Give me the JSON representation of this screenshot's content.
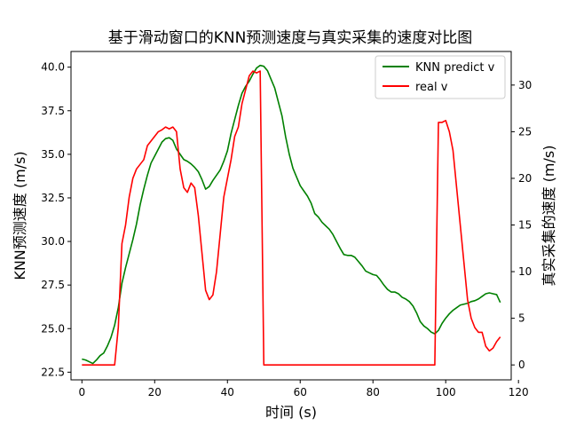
{
  "chart_data": {
    "type": "line",
    "title": "基于滑动窗口的KNN预测速度与真实采集的速度对比图",
    "xlabel": "时间 (s)",
    "ylabel_left": "KNN预测速度 (m/s)",
    "ylabel_right": "真实采集的速度 (m/s)",
    "xlim": [
      -3,
      118
    ],
    "ylim_left": [
      22.06,
      40.9
    ],
    "ylim_right": [
      -1.6,
      33.6
    ],
    "xticks": [
      0,
      20,
      40,
      60,
      80,
      100,
      120
    ],
    "yticks_left": [
      22.5,
      25.0,
      27.5,
      30.0,
      32.5,
      35.0,
      37.5,
      40.0
    ],
    "yticks_right": [
      0,
      5,
      10,
      15,
      20,
      25,
      30
    ],
    "xtick_labels": [
      "0",
      "20",
      "40",
      "60",
      "80",
      "100",
      "120"
    ],
    "ytick_labels_left": [
      "22.5",
      "25.0",
      "27.5",
      "30.0",
      "32.5",
      "35.0",
      "37.5",
      "40.0"
    ],
    "ytick_labels_right": [
      "0",
      "5",
      "10",
      "15",
      "20",
      "25",
      "30"
    ],
    "legend_position": "top-right",
    "grid": false,
    "series": [
      {
        "name": "KNN predict v",
        "color": "#008000",
        "axis": "left",
        "points": [
          [
            0,
            23.25
          ],
          [
            1,
            23.2
          ],
          [
            2,
            23.1
          ],
          [
            3,
            23.0
          ],
          [
            4,
            23.2
          ],
          [
            5,
            23.45
          ],
          [
            6,
            23.6
          ],
          [
            7,
            24.0
          ],
          [
            8,
            24.5
          ],
          [
            9,
            25.2
          ],
          [
            10,
            26.2
          ],
          [
            11,
            27.6
          ],
          [
            12,
            28.5
          ],
          [
            13,
            29.3
          ],
          [
            14,
            30.1
          ],
          [
            15,
            31.0
          ],
          [
            16,
            32.1
          ],
          [
            17,
            33.0
          ],
          [
            18,
            33.8
          ],
          [
            19,
            34.5
          ],
          [
            20,
            34.9
          ],
          [
            21,
            35.3
          ],
          [
            22,
            35.7
          ],
          [
            23,
            35.9
          ],
          [
            24,
            35.95
          ],
          [
            25,
            35.8
          ],
          [
            26,
            35.3
          ],
          [
            27,
            35.0
          ],
          [
            28,
            34.7
          ],
          [
            29,
            34.6
          ],
          [
            30,
            34.45
          ],
          [
            31,
            34.25
          ],
          [
            32,
            34.0
          ],
          [
            33,
            33.55
          ],
          [
            34,
            33.0
          ],
          [
            35,
            33.15
          ],
          [
            36,
            33.5
          ],
          [
            37,
            33.8
          ],
          [
            38,
            34.1
          ],
          [
            39,
            34.6
          ],
          [
            40,
            35.2
          ],
          [
            41,
            36.2
          ],
          [
            42,
            37.0
          ],
          [
            43,
            37.8
          ],
          [
            44,
            38.5
          ],
          [
            45,
            38.9
          ],
          [
            46,
            39.2
          ],
          [
            47,
            39.6
          ],
          [
            48,
            39.95
          ],
          [
            49,
            40.1
          ],
          [
            50,
            40.05
          ],
          [
            51,
            39.8
          ],
          [
            52,
            39.3
          ],
          [
            53,
            38.8
          ],
          [
            54,
            38.0
          ],
          [
            55,
            37.2
          ],
          [
            56,
            36.0
          ],
          [
            57,
            35.0
          ],
          [
            58,
            34.2
          ],
          [
            59,
            33.7
          ],
          [
            60,
            33.2
          ],
          [
            61,
            32.9
          ],
          [
            62,
            32.6
          ],
          [
            63,
            32.2
          ],
          [
            64,
            31.6
          ],
          [
            65,
            31.4
          ],
          [
            66,
            31.1
          ],
          [
            67,
            30.9
          ],
          [
            68,
            30.7
          ],
          [
            69,
            30.4
          ],
          [
            70,
            30.0
          ],
          [
            71,
            29.6
          ],
          [
            72,
            29.25
          ],
          [
            73,
            29.2
          ],
          [
            74,
            29.2
          ],
          [
            75,
            29.1
          ],
          [
            76,
            28.85
          ],
          [
            77,
            28.6
          ],
          [
            78,
            28.3
          ],
          [
            79,
            28.2
          ],
          [
            80,
            28.1
          ],
          [
            81,
            28.05
          ],
          [
            82,
            27.8
          ],
          [
            83,
            27.5
          ],
          [
            84,
            27.25
          ],
          [
            85,
            27.1
          ],
          [
            86,
            27.1
          ],
          [
            87,
            27.0
          ],
          [
            88,
            26.8
          ],
          [
            89,
            26.7
          ],
          [
            90,
            26.55
          ],
          [
            91,
            26.3
          ],
          [
            92,
            25.9
          ],
          [
            93,
            25.4
          ],
          [
            94,
            25.15
          ],
          [
            95,
            25.0
          ],
          [
            96,
            24.8
          ],
          [
            97,
            24.7
          ],
          [
            98,
            24.9
          ],
          [
            99,
            25.3
          ],
          [
            100,
            25.6
          ],
          [
            101,
            25.85
          ],
          [
            102,
            26.05
          ],
          [
            103,
            26.2
          ],
          [
            104,
            26.35
          ],
          [
            105,
            26.4
          ],
          [
            106,
            26.45
          ],
          [
            107,
            26.55
          ],
          [
            108,
            26.6
          ],
          [
            109,
            26.7
          ],
          [
            110,
            26.85
          ],
          [
            111,
            27.0
          ],
          [
            112,
            27.05
          ],
          [
            113,
            27.0
          ],
          [
            114,
            26.95
          ],
          [
            115,
            26.5
          ]
        ]
      },
      {
        "name": "real v",
        "color": "#ff0000",
        "axis": "right",
        "points": [
          [
            0,
            0
          ],
          [
            1,
            0
          ],
          [
            2,
            0
          ],
          [
            3,
            0
          ],
          [
            4,
            0
          ],
          [
            5,
            0
          ],
          [
            6,
            0
          ],
          [
            7,
            0
          ],
          [
            8,
            0
          ],
          [
            9,
            0
          ],
          [
            10,
            4
          ],
          [
            11,
            13
          ],
          [
            12,
            15
          ],
          [
            13,
            18
          ],
          [
            14,
            20
          ],
          [
            15,
            21
          ],
          [
            16,
            21.5
          ],
          [
            17,
            22
          ],
          [
            18,
            23.5
          ],
          [
            19,
            24
          ],
          [
            20,
            24.5
          ],
          [
            21,
            25
          ],
          [
            22,
            25.2
          ],
          [
            23,
            25.5
          ],
          [
            24,
            25.3
          ],
          [
            25,
            25.5
          ],
          [
            26,
            25
          ],
          [
            27,
            21
          ],
          [
            28,
            19
          ],
          [
            29,
            18.5
          ],
          [
            30,
            19.5
          ],
          [
            31,
            19
          ],
          [
            32,
            16
          ],
          [
            33,
            12
          ],
          [
            34,
            8
          ],
          [
            35,
            7
          ],
          [
            36,
            7.5
          ],
          [
            37,
            10
          ],
          [
            38,
            14
          ],
          [
            39,
            18
          ],
          [
            40,
            20
          ],
          [
            41,
            22
          ],
          [
            42,
            24.5
          ],
          [
            43,
            25.5
          ],
          [
            44,
            28
          ],
          [
            45,
            29.5
          ],
          [
            46,
            31
          ],
          [
            47,
            31.5
          ],
          [
            48,
            31.3
          ],
          [
            49,
            31.5
          ],
          [
            50,
            0
          ],
          [
            51,
            0
          ],
          [
            60,
            0
          ],
          [
            70,
            0
          ],
          [
            80,
            0
          ],
          [
            90,
            0
          ],
          [
            96,
            0
          ],
          [
            97,
            0
          ],
          [
            98,
            26
          ],
          [
            99,
            26
          ],
          [
            100,
            26.2
          ],
          [
            101,
            25
          ],
          [
            102,
            23
          ],
          [
            103,
            19
          ],
          [
            104,
            15
          ],
          [
            105,
            11
          ],
          [
            106,
            7
          ],
          [
            107,
            5
          ],
          [
            108,
            4
          ],
          [
            109,
            3.5
          ],
          [
            110,
            3.5
          ],
          [
            111,
            2
          ],
          [
            112,
            1.5
          ],
          [
            113,
            1.8
          ],
          [
            114,
            2.5
          ],
          [
            115,
            3
          ]
        ]
      }
    ]
  }
}
